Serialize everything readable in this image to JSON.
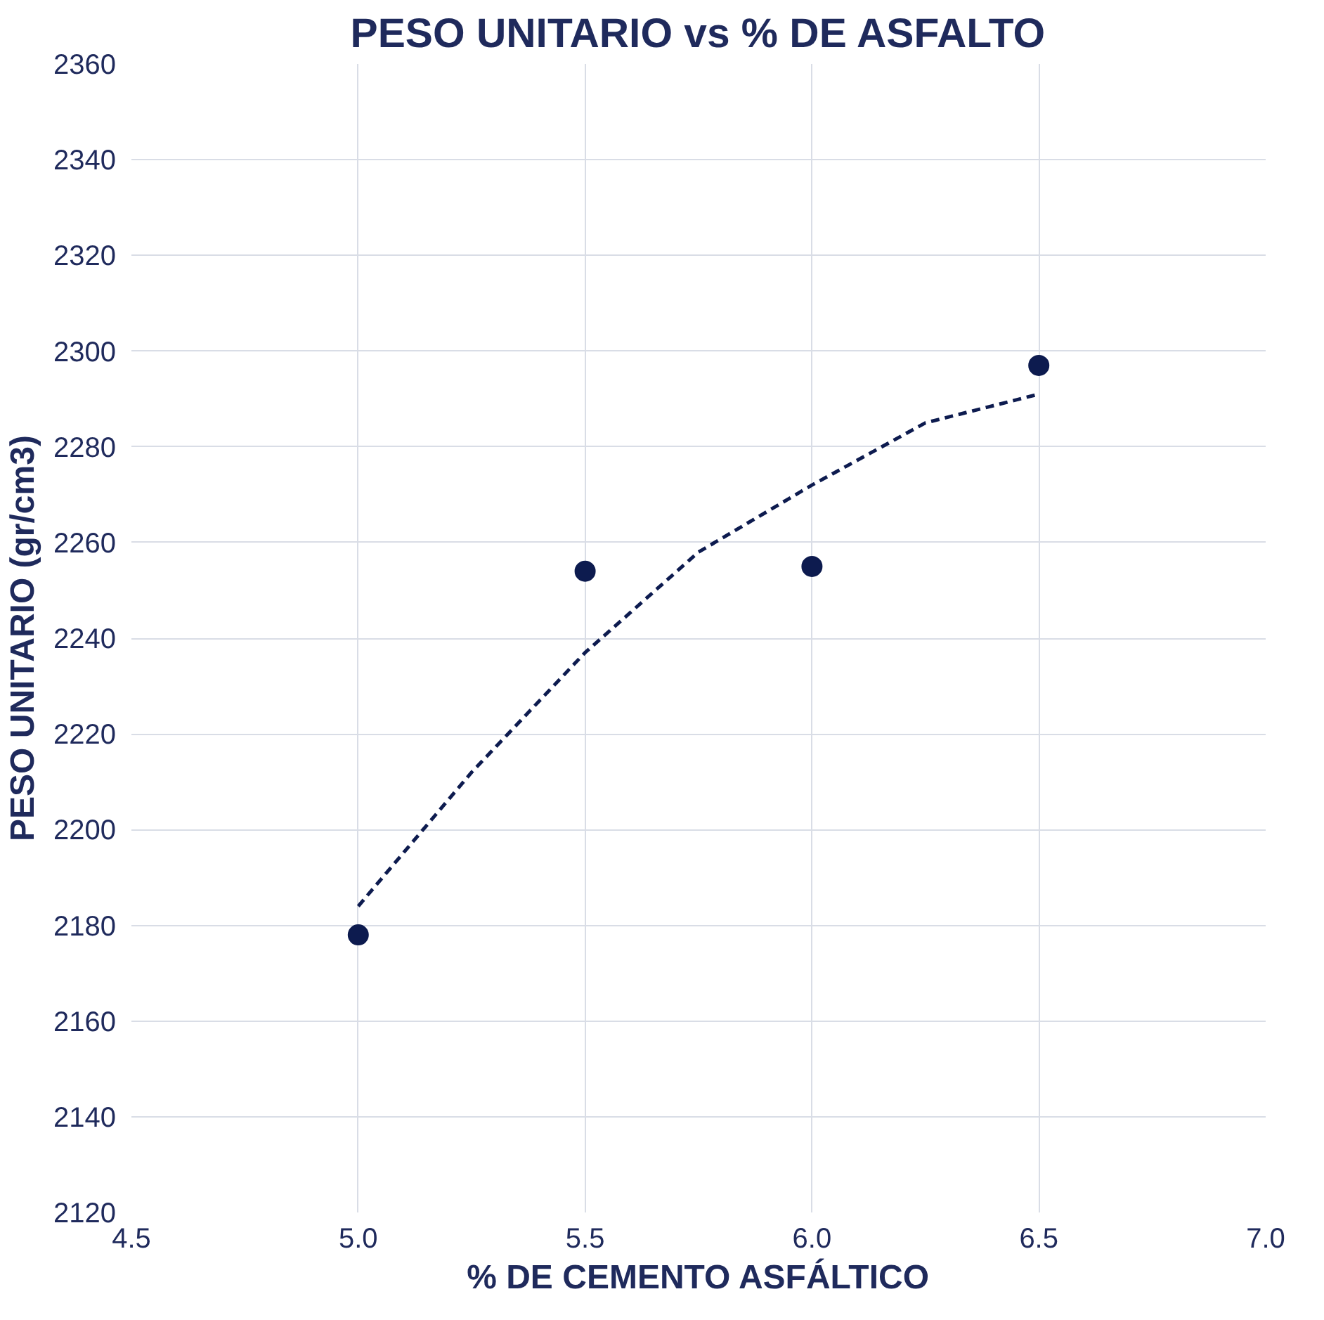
{
  "chart_data": {
    "type": "scatter",
    "title": "PESO UNITARIO vs % DE ASFALTO",
    "xlabel": "% DE CEMENTO ASFÁLTICO",
    "ylabel": "PESO UNITARIO (gr/cm3)",
    "series": [
      {
        "color": "#0d1b4f",
        "marker": "circle",
        "x": [
          5.0,
          5.5,
          6.0,
          6.5
        ],
        "values": [
          2178,
          2254,
          2255,
          2297
        ]
      },
      {
        "type": "line",
        "color": "#0d1b4f",
        "line_style": "dashed",
        "marker": "none",
        "x": [
          5.0,
          5.25,
          5.5,
          5.75,
          6.0,
          6.25,
          6.5
        ],
        "values": [
          2184,
          2212,
          2237,
          2258,
          2272,
          2285,
          2291
        ]
      }
    ],
    "xlim": [
      4.5,
      7.0
    ],
    "xticks": [
      {
        "value": 4.5,
        "label": "4.5"
      },
      {
        "value": 5.0,
        "label": "5.0"
      },
      {
        "value": 5.5,
        "label": "5.5"
      },
      {
        "value": 6.0,
        "label": "6.0"
      },
      {
        "value": 6.5,
        "label": "6.5"
      },
      {
        "value": 7.0,
        "label": "7.0"
      }
    ],
    "ylim": [
      2120,
      2360
    ],
    "yticks": [
      2120,
      2140,
      2160,
      2180,
      2200,
      2220,
      2240,
      2260,
      2280,
      2300,
      2320,
      2340,
      2360
    ],
    "grid": true
  }
}
